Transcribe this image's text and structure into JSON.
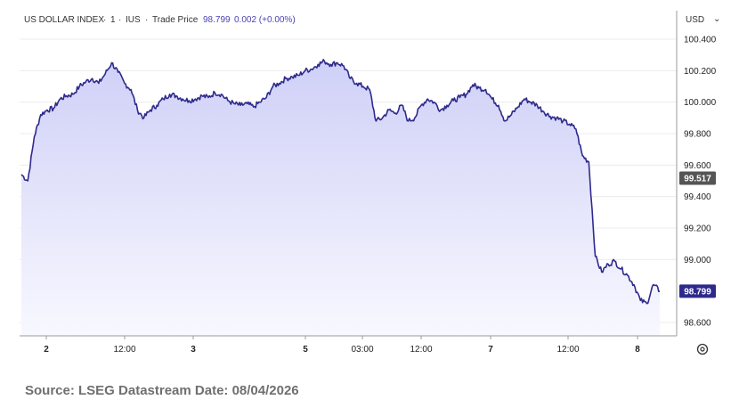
{
  "header": {
    "instrument": "US DOLLAR INDEX",
    "separator_1": "·",
    "interval": "1",
    "separator_2": "·",
    "exchange": "IUS",
    "separator_3": "·",
    "price_label": "Trade Price",
    "price": "98.799",
    "change": "0.002 (+0.00%)"
  },
  "currency_selector": {
    "label": "USD",
    "chevron": "⌄"
  },
  "settings_icon": "gear-icon",
  "source": "Source: LSEG Datastream Date: 08/04/2026",
  "colors": {
    "line": "#2e2a8c",
    "fill_top": "#cfd0f7",
    "fill_bottom": "#f8f8ff",
    "flag_reference": "#555555",
    "flag_last": "#2e2a8c",
    "grid": "#ececec"
  },
  "chart_data": {
    "type": "area",
    "title": "US DOLLAR INDEX",
    "ylim": [
      98.55,
      100.46
    ],
    "y_ticks": [
      "100.400",
      "100.200",
      "100.000",
      "99.800",
      "99.600",
      "99.400",
      "99.200",
      "99.000",
      "98.600"
    ],
    "x_ticks": [
      {
        "label": "2",
        "bold": true
      },
      {
        "label": "12:00",
        "bold": false
      },
      {
        "label": "3",
        "bold": true
      },
      {
        "label": "5",
        "bold": true
      },
      {
        "label": "03:00",
        "bold": false
      },
      {
        "label": "12:00",
        "bold": false
      },
      {
        "label": "7",
        "bold": true
      },
      {
        "label": "12:00",
        "bold": false
      },
      {
        "label": "8",
        "bold": true
      }
    ],
    "price_flags": [
      {
        "label": "99.517",
        "value": 99.517,
        "kind": "reference"
      },
      {
        "label": "98.799",
        "value": 98.799,
        "kind": "last"
      }
    ],
    "series": [
      {
        "values": [
          99.54,
          99.5,
          99.78,
          99.92,
          99.95,
          99.96,
          100.02,
          100.04,
          100.05,
          100.1,
          100.13,
          100.15,
          100.12,
          100.18,
          100.25,
          100.19,
          100.12,
          100.08,
          99.95,
          99.9,
          99.95,
          99.98,
          100.02,
          100.05,
          100.04,
          100.02,
          100.01,
          100.02,
          100.04,
          100.03,
          100.06,
          100.05,
          100.01,
          99.99,
          99.98,
          99.99,
          99.97,
          100.0,
          100.03,
          100.1,
          100.12,
          100.15,
          100.16,
          100.17,
          100.2,
          100.21,
          100.24,
          100.26,
          100.24,
          100.25,
          100.23,
          100.15,
          100.12,
          100.1,
          100.08,
          99.88,
          99.9,
          99.95,
          99.93,
          99.98,
          99.88,
          99.9,
          99.98,
          100.02,
          100.0,
          99.95,
          99.98,
          100.01,
          100.03,
          100.05,
          100.11,
          100.09,
          100.08,
          100.02,
          99.98,
          99.88,
          99.92,
          99.97,
          100.02,
          100.0,
          99.98,
          99.94,
          99.91,
          99.9,
          99.88,
          99.86,
          99.83,
          99.66,
          99.62,
          99.02,
          98.92,
          98.97,
          98.99,
          98.94,
          98.9,
          98.84,
          98.74,
          98.72,
          98.84,
          98.8
        ]
      }
    ]
  }
}
